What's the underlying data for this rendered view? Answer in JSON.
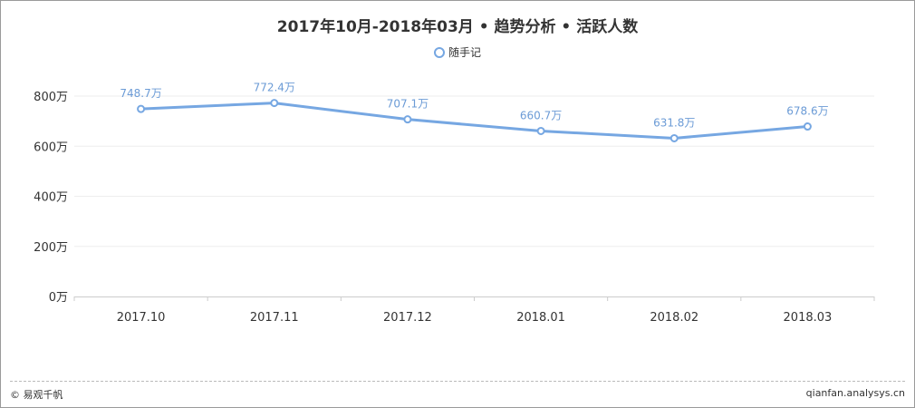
{
  "title": "2017年10月-2018年03月 • 趋势分析 • 活跃人数",
  "footer": {
    "left": "© 易观千帆",
    "right": "qianfan.analysys.cn"
  },
  "colors": {
    "series": "#76a7e2",
    "label": "#6b9bd6",
    "grid": "#eeeeee"
  },
  "chart_data": {
    "type": "line",
    "categories": [
      "2017.10",
      "2017.11",
      "2017.12",
      "2018.01",
      "2018.02",
      "2018.03"
    ],
    "series": [
      {
        "name": "随手记",
        "values": [
          748.7,
          772.4,
          707.1,
          660.7,
          631.8,
          678.6
        ],
        "labels": [
          "748.7万",
          "772.4万",
          "707.1万",
          "660.7万",
          "631.8万",
          "678.6万"
        ]
      }
    ],
    "yticks": [
      "0万",
      "200万",
      "400万",
      "600万",
      "800万"
    ],
    "ytick_values": [
      0,
      200,
      400,
      600,
      800
    ],
    "ylim": [
      0,
      800
    ],
    "grid": true,
    "legend_position": "top-center"
  }
}
